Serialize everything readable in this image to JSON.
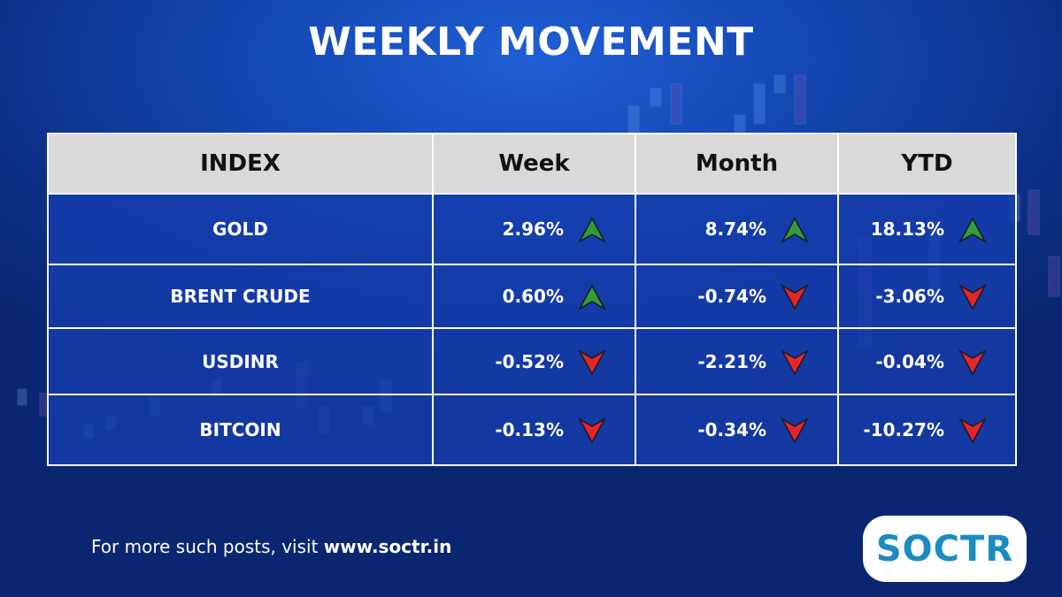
{
  "header": {
    "title": "WEEKLY MOVEMENT"
  },
  "table": {
    "columns": [
      "INDEX",
      "Week",
      "Month",
      "YTD"
    ],
    "rows": [
      [
        "GOLD",
        "2.96%",
        "8.74%",
        "18.13%"
      ],
      [
        "BRENT CRUDE",
        "0.60%",
        "-0.74%",
        "-3.06%"
      ],
      [
        "USDINR",
        "-0.52%",
        "-2.21%",
        "-0.04%"
      ],
      [
        "BITCOIN",
        "-0.13%",
        "-0.34%",
        "-10.27%"
      ]
    ]
  },
  "footer": {
    "text": "For more such posts, visit ",
    "link": "www.soctr.in",
    "logo": "SOCTR"
  }
}
